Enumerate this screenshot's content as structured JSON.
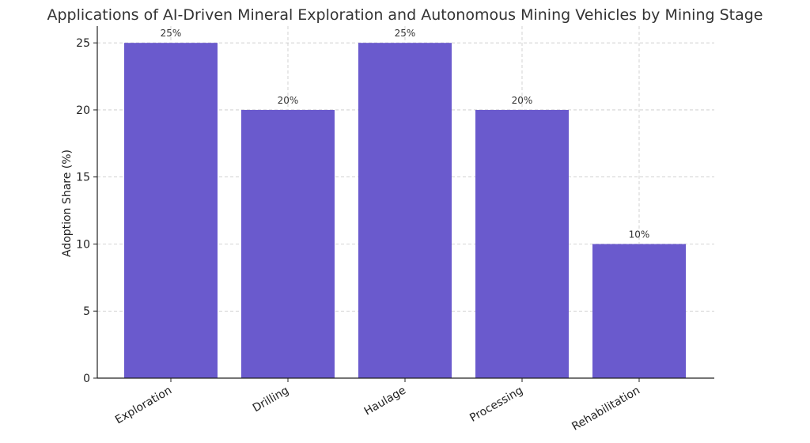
{
  "chart_data": {
    "type": "bar",
    "title": "Applications of AI-Driven Mineral Exploration and Autonomous Mining Vehicles by Mining Stage",
    "xlabel": "",
    "ylabel": "Adoption Share (%)",
    "categories": [
      "Exploration",
      "Drilling",
      "Haulage",
      "Processing",
      "Rehabilitation"
    ],
    "values": [
      25,
      20,
      25,
      20,
      10
    ],
    "data_labels": [
      "25%",
      "20%",
      "25%",
      "20%",
      "10%"
    ],
    "ylim": [
      0,
      26.25
    ],
    "yticks": [
      0,
      5,
      10,
      15,
      20,
      25
    ],
    "grid": true,
    "legend": "none",
    "bar_color": "#6a5acd"
  }
}
